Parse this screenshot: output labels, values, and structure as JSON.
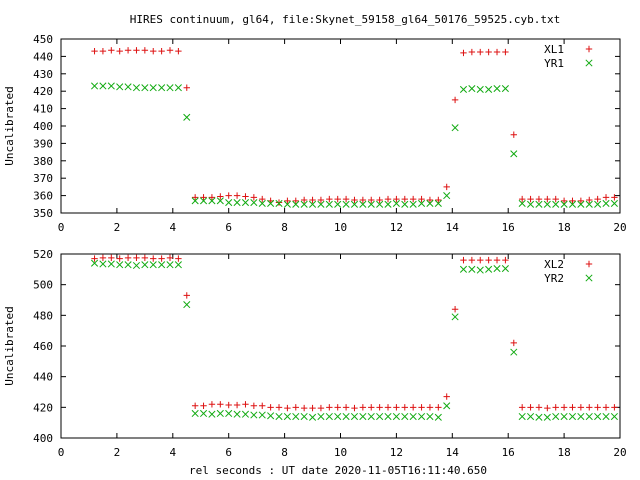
{
  "figure": {
    "title": "HIRES continuum, gl64, file:Skynet_59158_gl64_50176_59525.cyb.txt",
    "xlabel": "rel seconds : UT date 2020-11-05T16:11:40.650"
  },
  "colors": {
    "red": "#dd1111",
    "green": "#11aa11",
    "axis": "#000000"
  },
  "chart_data": [
    {
      "type": "scatter",
      "title": "",
      "xlabel": "",
      "ylabel": "Uncalibrated",
      "xlim": [
        0,
        20
      ],
      "ylim": [
        350,
        450
      ],
      "xticks": [
        0,
        2,
        4,
        6,
        8,
        10,
        12,
        14,
        16,
        18,
        20
      ],
      "yticks": [
        350,
        360,
        370,
        380,
        390,
        400,
        410,
        420,
        430,
        440,
        450
      ],
      "legend_position": "top-right",
      "x": [
        1.2,
        1.5,
        1.8,
        2.1,
        2.4,
        2.7,
        3.0,
        3.3,
        3.6,
        3.9,
        4.2,
        4.5,
        4.8,
        5.1,
        5.4,
        5.7,
        6.0,
        6.3,
        6.6,
        6.9,
        7.2,
        7.5,
        7.8,
        8.1,
        8.4,
        8.7,
        9.0,
        9.3,
        9.6,
        9.9,
        10.2,
        10.5,
        10.8,
        11.1,
        11.4,
        11.7,
        12.0,
        12.3,
        12.6,
        12.9,
        13.2,
        13.5,
        13.8,
        14.1,
        14.4,
        14.7,
        15.0,
        15.3,
        15.6,
        15.9,
        16.2,
        16.5,
        16.8,
        17.1,
        17.4,
        17.7,
        18.0,
        18.3,
        18.6,
        18.9,
        19.2,
        19.5,
        19.8
      ],
      "series": [
        {
          "name": "XL1",
          "marker": "+",
          "color": "#dd1111",
          "values": [
            443,
            443,
            443.5,
            443,
            443.5,
            443.5,
            443.5,
            443,
            443,
            443.5,
            443,
            422,
            359,
            359,
            359,
            359.5,
            360,
            360,
            359.5,
            359,
            358,
            357,
            356,
            357,
            357,
            357.5,
            357.5,
            357.5,
            358,
            358,
            358,
            357.5,
            357.5,
            357.5,
            357.5,
            358,
            358,
            358,
            358,
            358,
            357.5,
            357.5,
            365,
            415,
            442,
            442.5,
            442.5,
            442.5,
            442.5,
            442.5,
            395,
            358,
            358,
            358,
            358,
            358,
            357,
            357,
            357,
            357.5,
            358,
            359,
            359
          ]
        },
        {
          "name": "YR1",
          "marker": "x",
          "color": "#11aa11",
          "values": [
            423,
            423,
            423,
            422.5,
            422.5,
            422,
            422,
            422,
            422,
            422,
            422,
            405,
            357,
            357,
            357,
            357,
            356,
            356,
            356,
            356,
            355.5,
            355.5,
            355.5,
            355,
            355,
            355,
            355,
            355,
            355,
            355,
            355,
            355,
            355,
            355,
            355,
            355,
            355.5,
            355,
            355,
            355.5,
            355.5,
            355.5,
            360,
            399,
            421,
            421.5,
            421,
            421,
            421.5,
            421.5,
            384,
            355.5,
            355,
            355,
            355,
            355,
            355,
            355,
            355,
            355,
            355,
            355.5,
            355.5
          ]
        }
      ]
    },
    {
      "type": "scatter",
      "title": "",
      "xlabel": "rel seconds : UT date 2020-11-05T16:11:40.650",
      "ylabel": "Uncalibrated",
      "xlim": [
        0,
        20
      ],
      "ylim": [
        400,
        520
      ],
      "xticks": [
        0,
        2,
        4,
        6,
        8,
        10,
        12,
        14,
        16,
        18,
        20
      ],
      "yticks": [
        400,
        420,
        440,
        460,
        480,
        500,
        520
      ],
      "legend_position": "top-right",
      "x": [
        1.2,
        1.5,
        1.8,
        2.1,
        2.4,
        2.7,
        3.0,
        3.3,
        3.6,
        3.9,
        4.2,
        4.5,
        4.8,
        5.1,
        5.4,
        5.7,
        6.0,
        6.3,
        6.6,
        6.9,
        7.2,
        7.5,
        7.8,
        8.1,
        8.4,
        8.7,
        9.0,
        9.3,
        9.6,
        9.9,
        10.2,
        10.5,
        10.8,
        11.1,
        11.4,
        11.7,
        12.0,
        12.3,
        12.6,
        12.9,
        13.2,
        13.5,
        13.8,
        14.1,
        14.4,
        14.7,
        15.0,
        15.3,
        15.6,
        15.9,
        16.2,
        16.5,
        16.8,
        17.1,
        17.4,
        17.7,
        18.0,
        18.3,
        18.6,
        18.9,
        19.2,
        19.5,
        19.8
      ],
      "series": [
        {
          "name": "XL2",
          "marker": "+",
          "color": "#dd1111",
          "values": [
            517,
            517.5,
            517.5,
            517,
            517.5,
            517.5,
            517.5,
            517,
            517,
            517.5,
            517,
            493,
            421,
            421,
            422,
            422,
            421.5,
            421.5,
            422,
            421,
            421,
            420,
            420,
            419.5,
            420,
            419.5,
            419.5,
            419.5,
            420,
            420,
            420,
            419.5,
            420,
            420,
            420,
            420,
            420,
            420,
            420,
            420,
            420,
            420,
            427,
            484,
            516,
            516,
            516,
            516,
            516,
            516,
            462,
            420,
            420,
            420,
            419.5,
            420,
            420,
            420,
            420,
            420,
            420,
            420,
            420
          ]
        },
        {
          "name": "YR2",
          "marker": "x",
          "color": "#11aa11",
          "values": [
            514,
            513.5,
            513.5,
            513,
            513,
            512.5,
            513,
            513,
            513,
            513,
            513,
            487,
            416,
            416,
            415.5,
            416,
            416,
            415.5,
            415.5,
            415,
            415,
            414.5,
            414,
            414,
            414,
            414,
            413.5,
            414,
            414,
            414,
            414,
            414,
            414,
            414,
            414,
            414,
            414,
            414,
            414,
            414,
            414,
            413.5,
            421,
            479,
            510,
            510,
            509.5,
            510,
            510.5,
            510.5,
            456,
            414,
            414,
            413.5,
            413.5,
            414,
            414,
            414,
            414,
            414,
            414,
            414,
            414
          ]
        }
      ]
    }
  ]
}
